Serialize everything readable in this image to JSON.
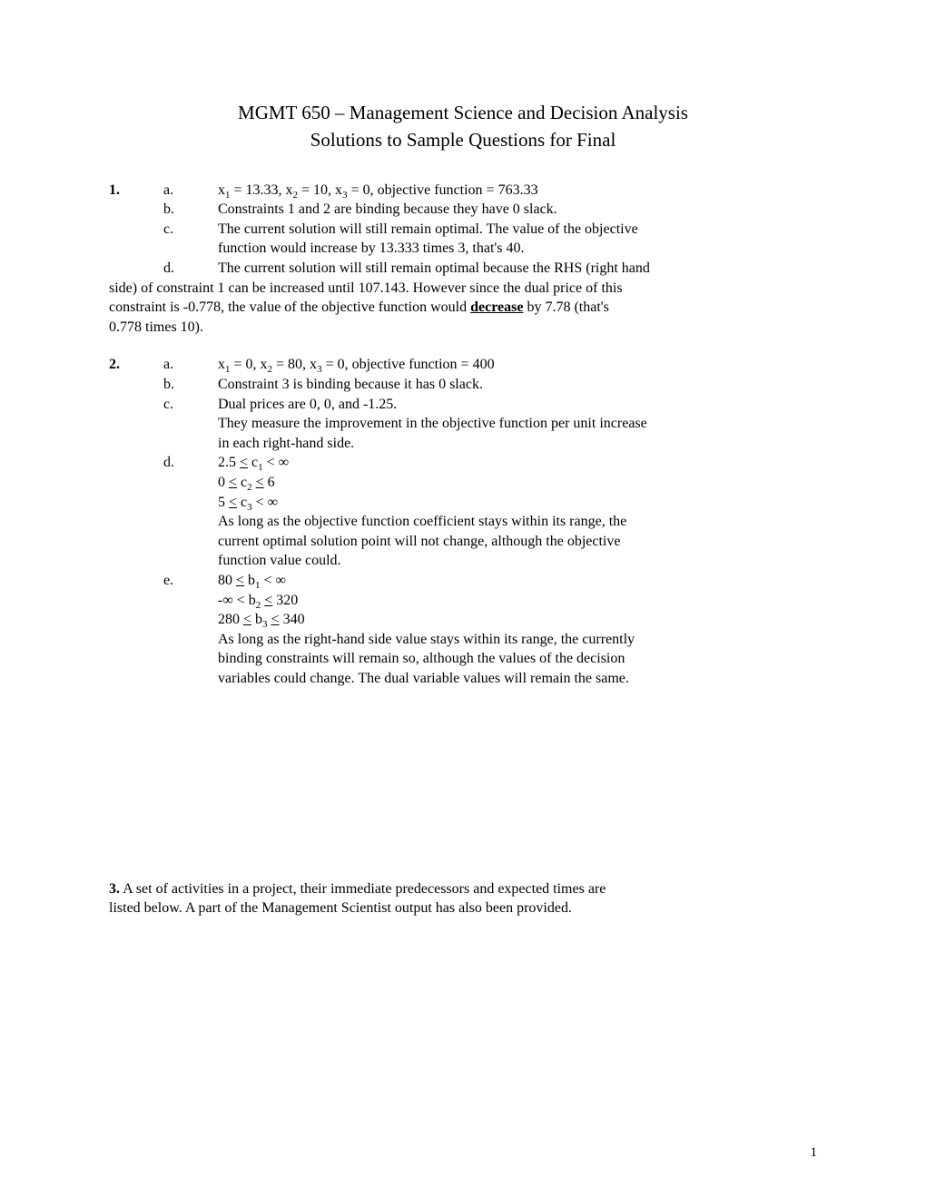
{
  "title": "MGMT 650 – Management Science and Decision Analysis",
  "subtitle": "Solutions to Sample Questions for Final",
  "q1": {
    "num": "1.",
    "a": {
      "letter": "a.",
      "text_pre": "x",
      "text_full": "x₁ = 13.33, x₂ = 10, x₃ = 0, objective function = 763.33"
    },
    "b": {
      "letter": "b.",
      "text": "Constraints 1 and 2 are binding because they have 0 slack."
    },
    "c": {
      "letter": "c.",
      "line1": "The current solution will still remain optimal. The value of the objective",
      "line2": "function would increase by 13.333 times 3, that's 40."
    },
    "d": {
      "letter": "d.",
      "line1": "The current solution will still remain optimal because the RHS (right hand"
    },
    "d_cont1": "side) of constraint 1 can be increased until 107.143. However since the dual price of this",
    "d_cont2_pre": "constraint is -0.778, the value of the objective function would ",
    "d_cont2_u": "decrease",
    "d_cont2_post": " by 7.78 (that's",
    "d_cont3": "0.778 times 10)."
  },
  "q2": {
    "num": "2.",
    "a": {
      "letter": "a.",
      "text": "x₁ = 0, x₂ = 80, x₃ = 0, objective function = 400"
    },
    "b": {
      "letter": "b.",
      "text": "Constraint 3 is binding because it has 0 slack."
    },
    "c": {
      "letter": "c.",
      "line1": "Dual prices are 0, 0, and -1.25.",
      "line2": "They measure the improvement in the objective function per unit increase",
      "line3": "in each right-hand side."
    },
    "d": {
      "letter": "d.",
      "l1": "2.5 ≤ c₁ < ∞",
      "l2": "0 ≤ c₂ ≤ 6",
      "l3": "5 ≤ c₃ < ∞",
      "l4": "As long as the objective function coefficient stays within its range, the",
      "l5": "current optimal solution point will not change, although the objective",
      "l6": "function value could."
    },
    "e": {
      "letter": "e.",
      "l1": "80 ≤ b₁ < ∞",
      "l2": "-∞ < b₂ ≤ 320",
      "l3": "280 ≤ b₃ ≤ 340",
      "l4": "As long as the right-hand side value stays within its range, the currently",
      "l5": "binding constraints will remain so, although the values of the decision",
      "l6": "variables could change.  The dual variable values will remain the same."
    }
  },
  "q3": {
    "num": "3.",
    "l1": " A set of activities in a project, their immediate predecessors and expected times are",
    "l2": "listed below. A part of the Management Scientist output has also been provided."
  },
  "pagenum": "1"
}
